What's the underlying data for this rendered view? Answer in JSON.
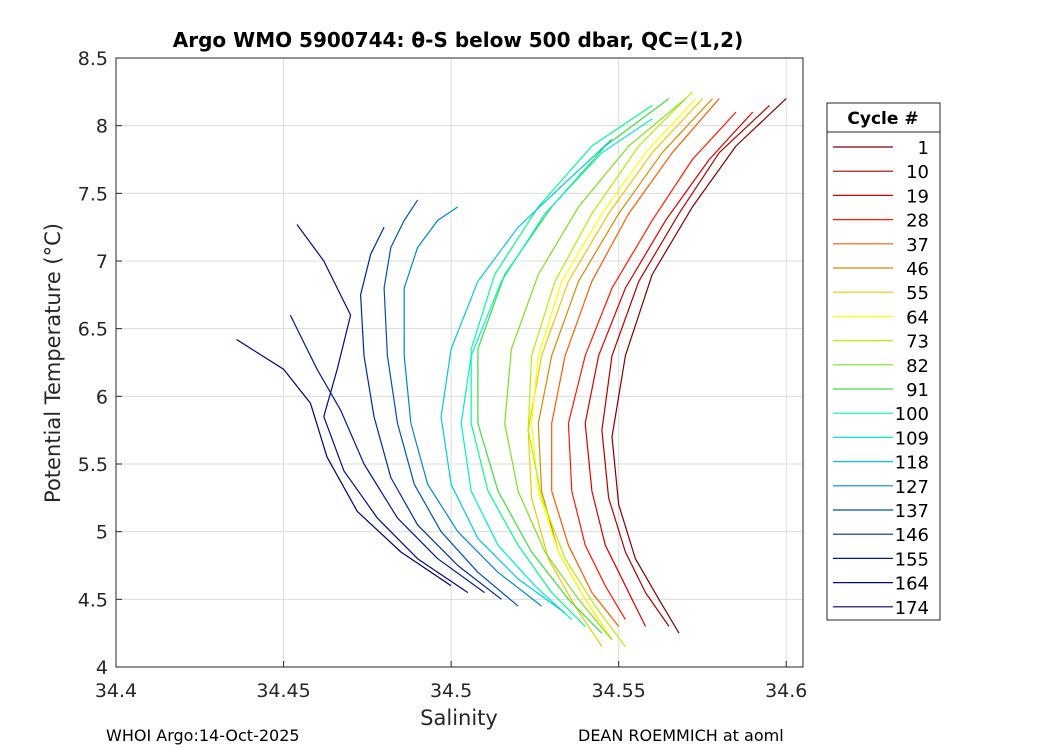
{
  "chart_data": {
    "type": "line",
    "title": "Argo WMO 5900744: θ-S below 500 dbar,  QC=(1,2)",
    "xlabel": "Salinity",
    "ylabel": "Potential Temperature (°C)",
    "xlim": [
      34.4,
      34.605
    ],
    "ylim": [
      4,
      8.5
    ],
    "xticks": [
      "34.4",
      "34.45",
      "34.5",
      "34.55",
      "34.6"
    ],
    "xtick_values": [
      34.4,
      34.45,
      34.5,
      34.55,
      34.6
    ],
    "yticks": [
      "4",
      "4.5",
      "5",
      "5.5",
      "6",
      "6.5",
      "7",
      "7.5",
      "8",
      "8.5"
    ],
    "ytick_values": [
      4,
      4.5,
      5,
      5.5,
      6,
      6.5,
      7,
      7.5,
      8,
      8.5
    ],
    "grid": true,
    "legend": {
      "title": "Cycle #",
      "placement": "right-outside",
      "entries": [
        {
          "label": "1",
          "color": "#800000"
        },
        {
          "label": "10",
          "color": "#b00000"
        },
        {
          "label": "19",
          "color": "#d80000"
        },
        {
          "label": "28",
          "color": "#ff1a00"
        },
        {
          "label": "37",
          "color": "#ff5a00"
        },
        {
          "label": "46",
          "color": "#d48b00"
        },
        {
          "label": "55",
          "color": "#f0c800"
        },
        {
          "label": "64",
          "color": "#ffff00"
        },
        {
          "label": "73",
          "color": "#b4f000"
        },
        {
          "label": "82",
          "color": "#80e020"
        },
        {
          "label": "91",
          "color": "#3ce040"
        },
        {
          "label": "100",
          "color": "#00ff90"
        },
        {
          "label": "109",
          "color": "#00f0d0"
        },
        {
          "label": "118",
          "color": "#00c8e6"
        },
        {
          "label": "127",
          "color": "#0088c8"
        },
        {
          "label": "137",
          "color": "#0050b4"
        },
        {
          "label": "146",
          "color": "#0028a0"
        },
        {
          "label": "155",
          "color": "#001890"
        },
        {
          "label": "164",
          "color": "#000c80"
        },
        {
          "label": "174",
          "color": "#000070"
        }
      ]
    },
    "series": [
      {
        "name": "1",
        "color": "#800000",
        "salinity": [
          34.568,
          34.562,
          34.555,
          34.55,
          34.548,
          34.552,
          34.56,
          34.572,
          34.585,
          34.6
        ],
        "theta": [
          4.25,
          4.5,
          4.8,
          5.2,
          5.7,
          6.3,
          6.9,
          7.4,
          7.85,
          8.2
        ]
      },
      {
        "name": "10",
        "color": "#b00000",
        "salinity": [
          34.565,
          34.558,
          34.552,
          34.547,
          34.545,
          34.548,
          34.556,
          34.568,
          34.58,
          34.595
        ],
        "theta": [
          4.3,
          4.55,
          4.85,
          5.25,
          5.75,
          6.3,
          6.85,
          7.35,
          7.8,
          8.15
        ]
      },
      {
        "name": "19",
        "color": "#d80000",
        "salinity": [
          34.558,
          34.552,
          34.546,
          34.542,
          34.54,
          34.544,
          34.552,
          34.564,
          34.577,
          34.59
        ],
        "theta": [
          4.3,
          4.6,
          4.9,
          5.3,
          5.8,
          6.3,
          6.8,
          7.3,
          7.75,
          8.1
        ]
      },
      {
        "name": "28",
        "color": "#ff1a00",
        "salinity": [
          34.552,
          34.546,
          34.54,
          34.536,
          34.535,
          34.54,
          34.548,
          34.56,
          34.572,
          34.585
        ],
        "theta": [
          4.35,
          4.6,
          4.9,
          5.3,
          5.8,
          6.3,
          6.8,
          7.3,
          7.75,
          8.1
        ]
      },
      {
        "name": "37",
        "color": "#ff5a00",
        "salinity": [
          34.55,
          34.542,
          34.535,
          34.53,
          34.53,
          34.534,
          34.542,
          34.553,
          34.566,
          34.58
        ],
        "theta": [
          4.3,
          4.55,
          4.9,
          5.3,
          5.8,
          6.3,
          6.85,
          7.35,
          7.8,
          8.2
        ]
      },
      {
        "name": "46",
        "color": "#d48b00",
        "salinity": [
          34.548,
          34.54,
          34.532,
          34.527,
          34.526,
          34.53,
          34.538,
          34.55,
          34.563,
          34.578
        ],
        "theta": [
          4.2,
          4.5,
          4.85,
          5.3,
          5.8,
          6.3,
          6.85,
          7.35,
          7.8,
          8.2
        ]
      },
      {
        "name": "55",
        "color": "#f0c800",
        "salinity": [
          34.545,
          34.537,
          34.529,
          34.524,
          34.523,
          34.527,
          34.535,
          34.547,
          34.56,
          34.575
        ],
        "theta": [
          4.15,
          4.45,
          4.8,
          5.25,
          5.75,
          6.3,
          6.85,
          7.35,
          7.8,
          8.2
        ]
      },
      {
        "name": "64",
        "color": "#ffff00",
        "salinity": [
          34.548,
          34.54,
          34.532,
          34.526,
          34.524,
          34.526,
          34.533,
          34.545,
          34.558,
          34.573
        ],
        "theta": [
          4.2,
          4.5,
          4.85,
          5.3,
          5.8,
          6.3,
          6.85,
          7.35,
          7.8,
          8.2
        ]
      },
      {
        "name": "73",
        "color": "#b4f000",
        "salinity": [
          34.552,
          34.543,
          34.534,
          34.527,
          34.523,
          34.524,
          34.531,
          34.542,
          34.556,
          34.572
        ],
        "theta": [
          4.15,
          4.45,
          4.8,
          5.25,
          5.75,
          6.3,
          6.85,
          7.35,
          7.85,
          8.25
        ]
      },
      {
        "name": "82",
        "color": "#80e020",
        "salinity": [
          34.548,
          34.538,
          34.528,
          34.52,
          34.516,
          34.518,
          34.526,
          34.538,
          34.553,
          34.57
        ],
        "theta": [
          4.2,
          4.5,
          4.85,
          5.3,
          5.8,
          6.35,
          6.9,
          7.4,
          7.85,
          8.2
        ]
      },
      {
        "name": "91",
        "color": "#3ce040",
        "salinity": [
          34.545,
          34.535,
          34.524,
          34.514,
          34.508,
          34.508,
          34.516,
          34.53,
          34.546,
          34.565
        ],
        "theta": [
          4.25,
          4.5,
          4.85,
          5.3,
          5.8,
          6.35,
          6.9,
          7.4,
          7.85,
          8.2
        ]
      },
      {
        "name": "100",
        "color": "#00ff90",
        "salinity": [
          34.54,
          34.53,
          34.52,
          34.511,
          34.506,
          34.506,
          34.513,
          34.526,
          34.542,
          34.56
        ],
        "theta": [
          4.3,
          4.55,
          4.9,
          5.3,
          5.8,
          6.35,
          6.9,
          7.4,
          7.85,
          8.15
        ]
      },
      {
        "name": "109",
        "color": "#00f0d0",
        "salinity": [
          34.536,
          34.525,
          34.514,
          34.506,
          34.503,
          34.506,
          34.515,
          34.528,
          34.545,
          34.56
        ],
        "theta": [
          4.35,
          4.6,
          4.9,
          5.3,
          5.8,
          6.3,
          6.85,
          7.35,
          7.8,
          8.05
        ]
      },
      {
        "name": "118",
        "color": "#00c8e6",
        "salinity": [
          34.534,
          34.52,
          34.508,
          34.5,
          34.497,
          34.5,
          34.508,
          34.52,
          34.535,
          34.548
        ],
        "theta": [
          4.4,
          4.65,
          4.95,
          5.35,
          5.85,
          6.35,
          6.85,
          7.25,
          7.6,
          7.9
        ]
      },
      {
        "name": "127",
        "color": "#0088c8",
        "salinity": [
          34.527,
          34.514,
          34.502,
          34.493,
          34.488,
          34.486,
          34.486,
          34.49,
          34.496,
          34.502
        ],
        "theta": [
          4.45,
          4.7,
          5.0,
          5.35,
          5.8,
          6.3,
          6.8,
          7.1,
          7.3,
          7.4
        ]
      },
      {
        "name": "137",
        "color": "#0050b4",
        "salinity": [
          34.52,
          34.508,
          34.497,
          34.489,
          34.484,
          34.481,
          34.48,
          34.482,
          34.486,
          34.49
        ],
        "theta": [
          4.45,
          4.7,
          5.0,
          5.35,
          5.8,
          6.3,
          6.8,
          7.1,
          7.3,
          7.45
        ]
      },
      {
        "name": "146",
        "color": "#0028a0",
        "salinity": [
          34.515,
          34.502,
          34.49,
          34.482,
          34.477,
          34.474,
          34.473,
          34.476,
          34.48
        ],
        "theta": [
          4.5,
          4.75,
          5.05,
          5.4,
          5.85,
          6.3,
          6.75,
          7.05,
          7.25
        ]
      },
      {
        "name": "155",
        "color": "#001890",
        "salinity": [
          34.51,
          34.496,
          34.484,
          34.474,
          34.467,
          34.46,
          34.455,
          34.452
        ],
        "theta": [
          4.55,
          4.8,
          5.1,
          5.5,
          5.9,
          6.2,
          6.45,
          6.6
        ]
      },
      {
        "name": "164",
        "color": "#000c80",
        "salinity": [
          34.505,
          34.49,
          34.478,
          34.468,
          34.462,
          34.466,
          34.47,
          34.462,
          34.454
        ],
        "theta": [
          4.55,
          4.8,
          5.1,
          5.45,
          5.85,
          6.2,
          6.6,
          7.0,
          7.27
        ]
      },
      {
        "name": "174",
        "color": "#000070",
        "salinity": [
          34.5,
          34.485,
          34.472,
          34.463,
          34.458,
          34.45,
          34.436
        ],
        "theta": [
          4.6,
          4.85,
          5.15,
          5.55,
          5.95,
          6.2,
          6.42
        ]
      }
    ]
  },
  "footer": {
    "left": "WHOI Argo:14-Oct-2025",
    "right": "DEAN ROEMMICH at aoml"
  }
}
